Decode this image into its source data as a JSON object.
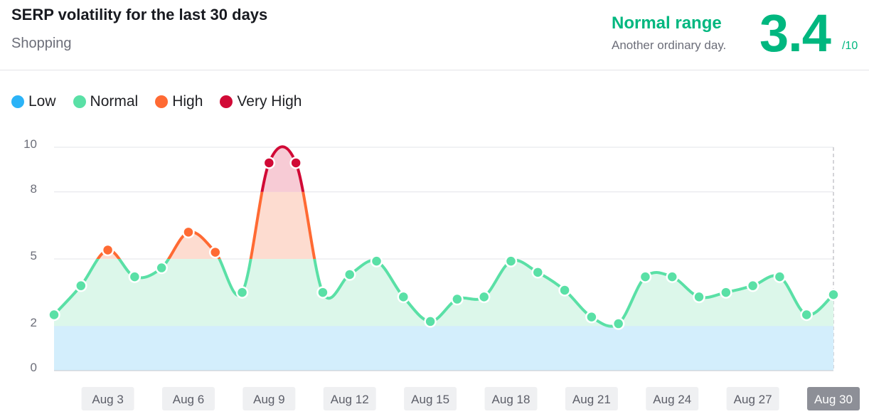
{
  "header": {
    "title": "SERP volatility for the last 30 days",
    "subtitle": "Shopping",
    "status_label": "Normal range",
    "status_description": "Another ordinary day.",
    "score": "3.4",
    "score_max": "/10"
  },
  "legend": [
    {
      "label": "Low",
      "color": "#2bb3f7"
    },
    {
      "label": "Normal",
      "color": "#5ae0a6"
    },
    {
      "label": "High",
      "color": "#ff6a33"
    },
    {
      "label": "Very High",
      "color": "#d10a36"
    }
  ],
  "colors": {
    "accent": "#00b77f",
    "low_fill": "#d3eefc",
    "normal_fill": "#dcf7ea",
    "high_fill": "#fddcd0",
    "very_high_fill": "#f7cbd5",
    "low": "#2bb3f7",
    "normal": "#5ae0a6",
    "high": "#ff6a33",
    "very_high": "#d10a36"
  },
  "chart_data": {
    "type": "area",
    "x": [
      "Aug 1",
      "Aug 2",
      "Aug 3",
      "Aug 4",
      "Aug 5",
      "Aug 6",
      "Aug 7",
      "Aug 8",
      "Aug 9",
      "Aug 10",
      "Aug 11",
      "Aug 12",
      "Aug 13",
      "Aug 14",
      "Aug 15",
      "Aug 16",
      "Aug 17",
      "Aug 18",
      "Aug 19",
      "Aug 20",
      "Aug 21",
      "Aug 22",
      "Aug 23",
      "Aug 24",
      "Aug 25",
      "Aug 26",
      "Aug 27",
      "Aug 28",
      "Aug 29",
      "Aug 30"
    ],
    "values": [
      2.5,
      3.8,
      5.4,
      4.2,
      4.6,
      6.2,
      5.3,
      3.5,
      9.3,
      9.3,
      3.5,
      4.3,
      4.9,
      3.3,
      2.2,
      3.2,
      3.3,
      4.9,
      4.4,
      3.6,
      2.4,
      2.1,
      4.2,
      4.2,
      3.3,
      3.5,
      3.8,
      4.2,
      2.5,
      3.4
    ],
    "yticks": [
      0,
      2,
      5,
      8,
      10
    ],
    "ylim": [
      0,
      10
    ],
    "xtick_labels": [
      "Aug 3",
      "Aug 6",
      "Aug 9",
      "Aug 12",
      "Aug 15",
      "Aug 18",
      "Aug 21",
      "Aug 24",
      "Aug 27",
      "Aug 30"
    ],
    "highlighted_tick": "Aug 30",
    "thresholds": {
      "low": 2,
      "normal": 5,
      "high": 8
    },
    "legend_position": "top-left",
    "grid": true
  }
}
